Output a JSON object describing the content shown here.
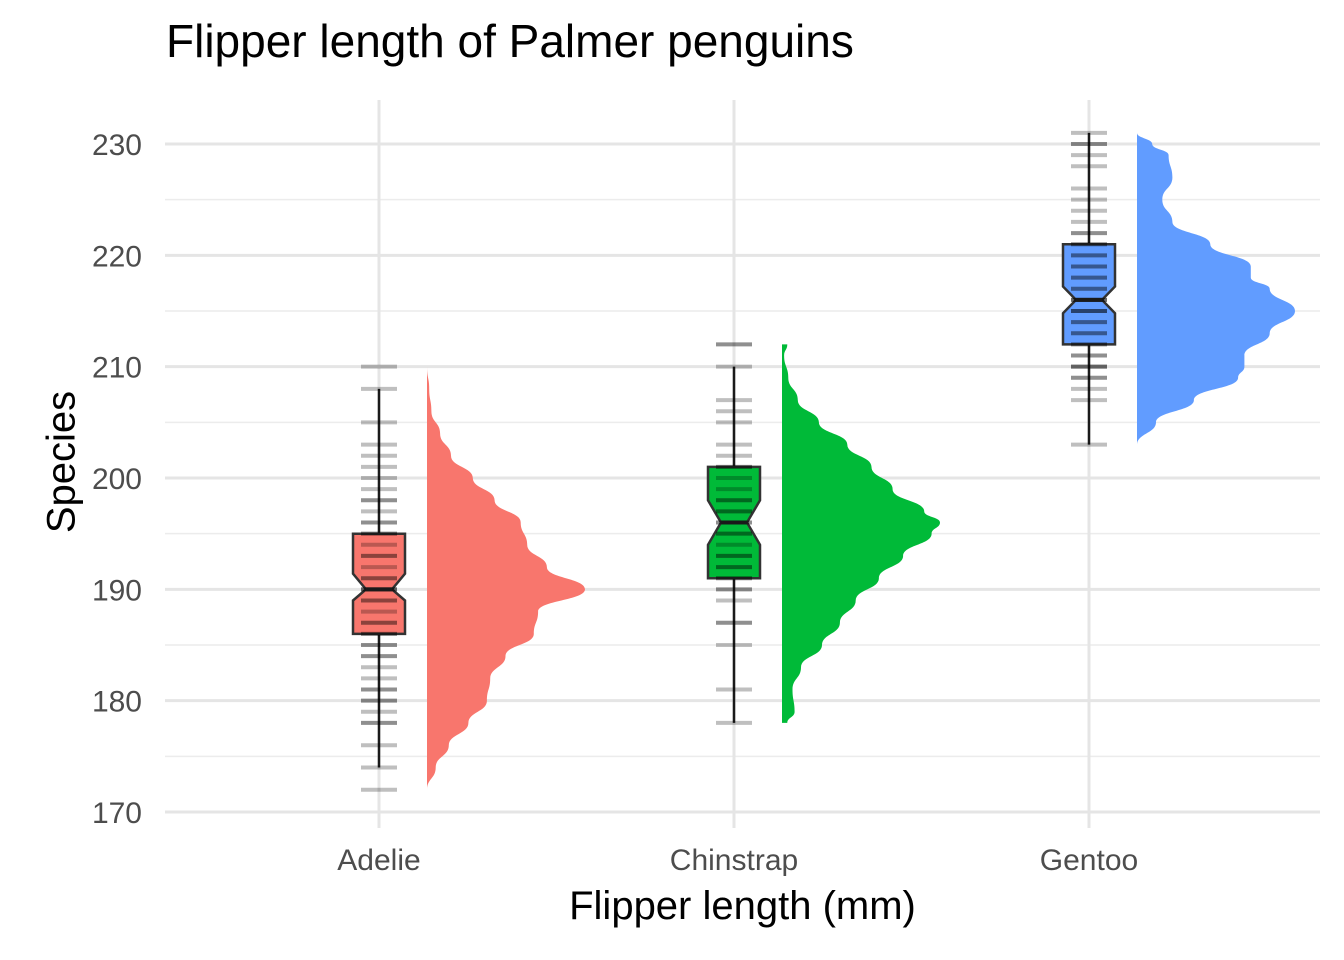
{
  "chart_data": {
    "type": "raincloud",
    "title": "Flipper length of Palmer penguins",
    "xlabel": "Flipper length (mm)",
    "ylabel": "Species",
    "categories": [
      "Adelie",
      "Chinstrap",
      "Gentoo"
    ],
    "ylim": [
      170,
      232
    ],
    "yticks": [
      170,
      180,
      190,
      200,
      210,
      220,
      230
    ],
    "grid": true,
    "legend": "none",
    "series": [
      {
        "category": "Adelie",
        "color": "#F8766D",
        "box": {
          "min": 174,
          "q1": 186,
          "median": 190,
          "q3": 195,
          "max": 208,
          "notch_low": 189,
          "notch_high": 191.4
        },
        "outliers": [
          172,
          210
        ],
        "observations": [
          174,
          176,
          178,
          178,
          179,
          180,
          180,
          181,
          181,
          182,
          183,
          184,
          184,
          185,
          185,
          186,
          186,
          187,
          187,
          188,
          189,
          189,
          190,
          190,
          190,
          191,
          191,
          192,
          193,
          193,
          194,
          195,
          195,
          196,
          196,
          197,
          198,
          198,
          199,
          200,
          201,
          202,
          203,
          205,
          208
        ],
        "density": {
          "y": [
            172,
            174,
            176,
            178,
            180,
            182,
            184,
            186,
            188,
            190,
            192,
            194,
            196,
            198,
            200,
            202,
            204,
            206,
            208,
            210
          ],
          "d": [
            0.0,
            0.08,
            0.2,
            0.38,
            0.55,
            0.58,
            0.72,
            0.98,
            1.02,
            1.45,
            1.1,
            0.92,
            0.86,
            0.62,
            0.42,
            0.22,
            0.12,
            0.04,
            0.02,
            0.0
          ]
        }
      },
      {
        "category": "Chinstrap",
        "color": "#00BA38",
        "box": {
          "min": 178,
          "q1": 191,
          "median": 196,
          "q3": 201,
          "max": 210,
          "notch_low": 194,
          "notch_high": 198
        },
        "outliers": [
          212
        ],
        "observations": [
          178,
          181,
          185,
          187,
          187,
          189,
          190,
          190,
          191,
          191,
          192,
          192,
          193,
          193,
          194,
          195,
          195,
          196,
          196,
          197,
          197,
          198,
          198,
          199,
          200,
          201,
          201,
          202,
          203,
          205,
          206,
          207,
          210,
          212
        ],
        "density": {
          "y": [
            178,
            179,
            181,
            183,
            185,
            187,
            189,
            191,
            193,
            195,
            196,
            197,
            199,
            201,
            203,
            205,
            207,
            209,
            211,
            212
          ],
          "d": [
            0.05,
            0.12,
            0.1,
            0.18,
            0.38,
            0.55,
            0.7,
            0.92,
            1.15,
            1.42,
            1.5,
            1.35,
            1.05,
            0.85,
            0.62,
            0.35,
            0.15,
            0.06,
            0.02,
            0.05
          ]
        }
      },
      {
        "category": "Gentoo",
        "color": "#619CFF",
        "box": {
          "min": 203,
          "q1": 212,
          "median": 216,
          "q3": 221,
          "max": 231,
          "notch_low": 214.8,
          "notch_high": 217.2
        },
        "outliers": [],
        "observations": [
          203,
          207,
          208,
          209,
          209,
          210,
          210,
          210,
          211,
          211,
          212,
          212,
          213,
          213,
          214,
          214,
          215,
          215,
          215,
          216,
          216,
          216,
          217,
          217,
          218,
          218,
          219,
          219,
          220,
          220,
          221,
          221,
          222,
          222,
          223,
          224,
          225,
          226,
          228,
          229,
          230,
          230,
          231
        ],
        "density": {
          "y": [
            203,
            205,
            207,
            209,
            210,
            211,
            213,
            215,
            217,
            218,
            219,
            221,
            223,
            225,
            227,
            229,
            230,
            231
          ],
          "d": [
            0.0,
            0.15,
            0.45,
            0.8,
            0.85,
            0.85,
            1.05,
            1.25,
            1.05,
            0.9,
            0.9,
            0.58,
            0.28,
            0.2,
            0.28,
            0.25,
            0.12,
            0.0
          ]
        }
      }
    ]
  }
}
